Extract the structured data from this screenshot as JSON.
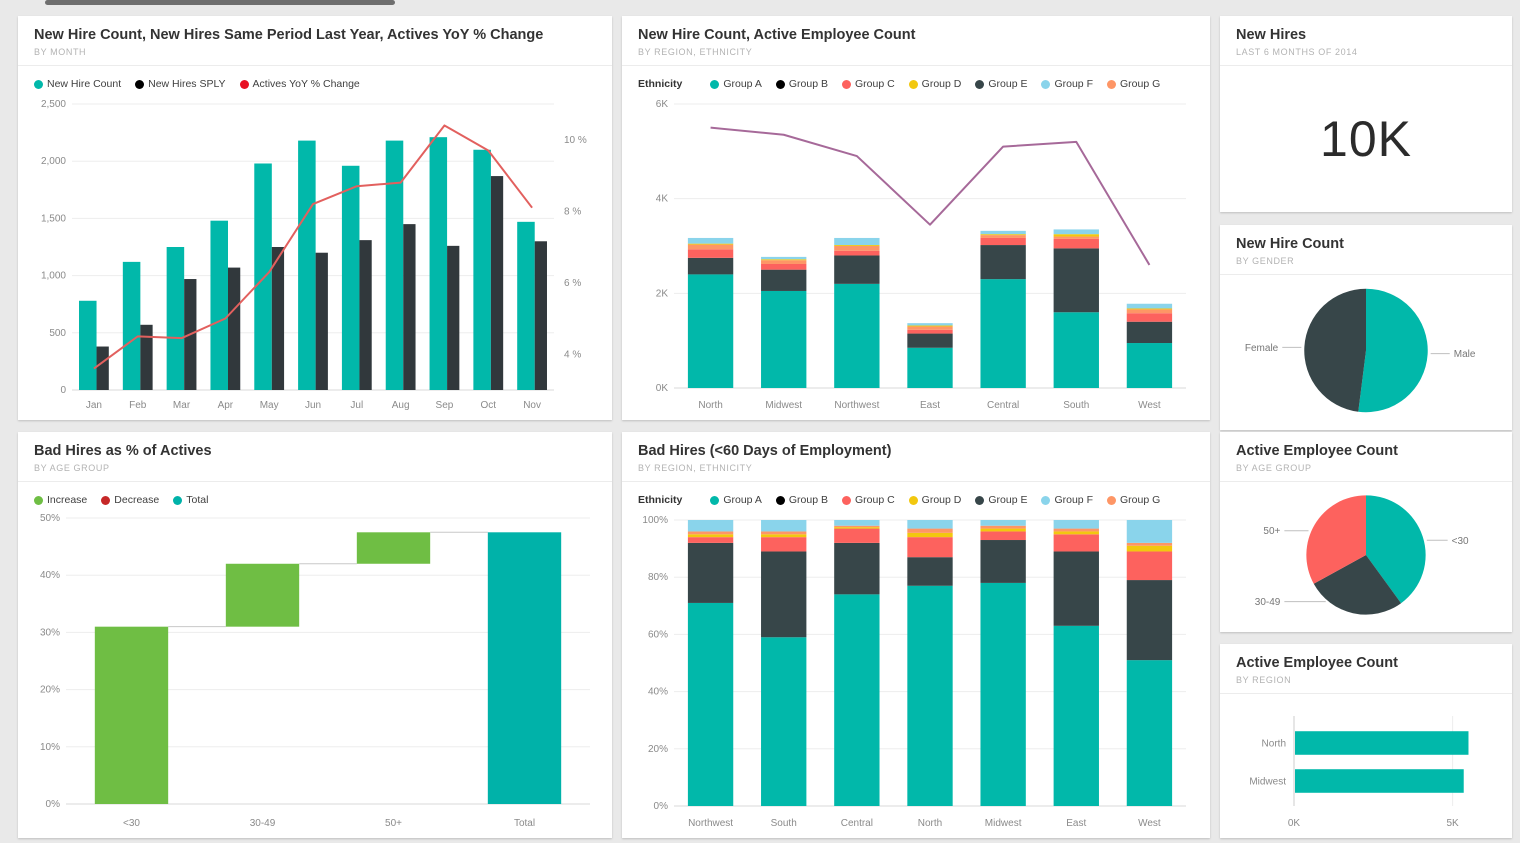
{
  "page": {
    "background": "#e9e9e9"
  },
  "colors": {
    "teal": "#01B8AA",
    "teal_total": "#00B2A9",
    "darkbar": "#31383C",
    "dark": "#374649",
    "black": "#000000",
    "red": "#FD625E",
    "yellow": "#F2C80F",
    "skyblue": "#8AD4EB",
    "orange": "#FE9666",
    "purple": "#A66999",
    "green": "#6FBE44",
    "legend_red": "#E81123",
    "line_red": "#E2605E",
    "decrease_red": "#C62828",
    "coral": "#FD625E",
    "axis_text": "#8a8a8a",
    "grid": "#ededed",
    "axis_line": "#d9d9d9"
  },
  "chart_data": [
    {
      "type": "combo",
      "title": "New Hire Count, New Hires Same Period Last Year, Actives YoY % Change",
      "subtitle": "BY MONTH",
      "legend": [
        {
          "label": "New Hire Count",
          "color": "teal"
        },
        {
          "label": "New Hires SPLY",
          "color": "black"
        },
        {
          "label": "Actives YoY % Change",
          "color": "legend_red"
        }
      ],
      "categories": [
        "Jan",
        "Feb",
        "Mar",
        "Apr",
        "May",
        "Jun",
        "Jul",
        "Aug",
        "Sep",
        "Oct",
        "Nov"
      ],
      "series": [
        {
          "name": "New Hire Count",
          "kind": "bar",
          "color": "teal",
          "values": [
            780,
            1120,
            1250,
            1480,
            1980,
            2180,
            1960,
            2180,
            2210,
            2100,
            1470
          ]
        },
        {
          "name": "New Hires SPLY",
          "kind": "bar",
          "color": "darkbar",
          "values": [
            380,
            570,
            970,
            1070,
            1250,
            1200,
            1310,
            1450,
            1260,
            1870,
            1300
          ]
        },
        {
          "name": "Actives YoY % Change",
          "kind": "line",
          "color": "line_red",
          "axis": "right",
          "values": [
            3.6,
            4.5,
            4.45,
            5.0,
            6.3,
            8.2,
            8.7,
            8.8,
            10.4,
            9.7,
            8.1
          ]
        }
      ],
      "y_left": {
        "min": 0,
        "max": 2500,
        "step": 500
      },
      "y_right": {
        "min": 3,
        "max": 11,
        "ticks": [
          4,
          6,
          8,
          10
        ],
        "suffix": " %"
      }
    },
    {
      "type": "stackedline",
      "title": "New Hire Count, Active Employee Count",
      "subtitle": "BY REGION, ETHNICITY",
      "legend_label": "Ethnicity",
      "legend": [
        {
          "label": "Group A",
          "color": "teal"
        },
        {
          "label": "Group B",
          "color": "black"
        },
        {
          "label": "Group C",
          "color": "red"
        },
        {
          "label": "Group D",
          "color": "yellow"
        },
        {
          "label": "Group E",
          "color": "dark"
        },
        {
          "label": "Group F",
          "color": "skyblue"
        },
        {
          "label": "Group G",
          "color": "orange"
        }
      ],
      "categories": [
        "North",
        "Midwest",
        "Northwest",
        "East",
        "Central",
        "South",
        "West"
      ],
      "stacks": [
        {
          "name": "Group A",
          "color": "teal",
          "values": [
            2.4,
            2.05,
            2.2,
            0.85,
            2.3,
            1.6,
            0.95
          ]
        },
        {
          "name": "Group B",
          "color": "dark",
          "values": [
            0.35,
            0.45,
            0.6,
            0.3,
            0.72,
            1.35,
            0.45
          ]
        },
        {
          "name": "Group C",
          "color": "red",
          "values": [
            0.18,
            0.12,
            0.1,
            0.08,
            0.15,
            0.2,
            0.18
          ]
        },
        {
          "name": "Group G",
          "color": "orange",
          "values": [
            0.1,
            0.08,
            0.1,
            0.07,
            0.06,
            0.05,
            0.08
          ]
        },
        {
          "name": "Group D",
          "color": "yellow",
          "values": [
            0.02,
            0.02,
            0.02,
            0.02,
            0.02,
            0.05,
            0.02
          ]
        },
        {
          "name": "Group F",
          "color": "skyblue",
          "values": [
            0.12,
            0.05,
            0.15,
            0.05,
            0.07,
            0.1,
            0.1
          ]
        }
      ],
      "line": {
        "name": "Active Employee Count",
        "color": "purple",
        "values": [
          5.5,
          5.35,
          4.9,
          3.45,
          5.1,
          5.2,
          2.6
        ]
      },
      "y": {
        "min": 0,
        "max": 6,
        "ticks": [
          0,
          2,
          4,
          6
        ],
        "suffix": "K"
      }
    },
    {
      "type": "card",
      "title": "New Hires",
      "subtitle": "LAST 6 MONTHS OF 2014",
      "value": "10K"
    },
    {
      "type": "pie",
      "title": "New Hire Count",
      "subtitle": "BY GENDER",
      "slices": [
        {
          "label": "Male",
          "value": 52,
          "color": "teal"
        },
        {
          "label": "Female",
          "value": 48,
          "color": "dark"
        }
      ]
    },
    {
      "type": "waterfall",
      "title": "Bad Hires as % of Actives",
      "subtitle": "BY AGE GROUP",
      "legend": [
        {
          "label": "Increase",
          "color": "green"
        },
        {
          "label": "Decrease",
          "color": "decrease_red"
        },
        {
          "label": "Total",
          "color": "teal_total"
        }
      ],
      "steps": [
        {
          "label": "<30",
          "start": 0,
          "end": 31,
          "color": "green"
        },
        {
          "label": "30-49",
          "start": 31,
          "end": 42,
          "color": "green"
        },
        {
          "label": "50+",
          "start": 42,
          "end": 47.5,
          "color": "green"
        },
        {
          "label": "Total",
          "start": 0,
          "end": 47.5,
          "color": "teal_total"
        }
      ],
      "y": {
        "min": 0,
        "max": 50,
        "step": 10,
        "suffix": "%"
      }
    },
    {
      "type": "stacked100",
      "title": "Bad Hires (<60 Days of Employment)",
      "subtitle": "BY REGION, ETHNICITY",
      "legend_label": "Ethnicity",
      "legend": [
        {
          "label": "Group A",
          "color": "teal"
        },
        {
          "label": "Group B",
          "color": "black"
        },
        {
          "label": "Group C",
          "color": "red"
        },
        {
          "label": "Group D",
          "color": "yellow"
        },
        {
          "label": "Group E",
          "color": "dark"
        },
        {
          "label": "Group F",
          "color": "skyblue"
        },
        {
          "label": "Group G",
          "color": "orange"
        }
      ],
      "categories": [
        "Northwest",
        "South",
        "Central",
        "North",
        "Midwest",
        "East",
        "West"
      ],
      "stacks": [
        {
          "name": "Group A",
          "color": "teal",
          "values": [
            71,
            59,
            74,
            77,
            78,
            63,
            51
          ]
        },
        {
          "name": "Group B",
          "color": "dark",
          "values": [
            21,
            30,
            18,
            10,
            15,
            26,
            28
          ]
        },
        {
          "name": "Group C",
          "color": "red",
          "values": [
            2,
            5,
            5,
            7,
            3,
            6,
            10
          ]
        },
        {
          "name": "Group D",
          "color": "yellow",
          "values": [
            1,
            1,
            0.5,
            1.5,
            1,
            1,
            2
          ]
        },
        {
          "name": "Group G",
          "color": "orange",
          "values": [
            1,
            1,
            0.5,
            1.5,
            1,
            1,
            1
          ]
        },
        {
          "name": "Group F",
          "color": "skyblue",
          "values": [
            4,
            4,
            2,
            3,
            2,
            3,
            8
          ]
        }
      ],
      "y": {
        "min": 0,
        "max": 100,
        "step": 20,
        "suffix": "%"
      }
    },
    {
      "type": "pie",
      "title": "Active Employee Count",
      "subtitle": "BY AGE GROUP",
      "slices": [
        {
          "label": "<30",
          "value": 40,
          "color": "teal"
        },
        {
          "label": "30-49",
          "value": 27,
          "color": "dark"
        },
        {
          "label": "50+",
          "value": 33,
          "color": "coral"
        }
      ]
    },
    {
      "type": "hbar",
      "title": "Active Employee Count",
      "subtitle": "BY REGION",
      "categories": [
        "North",
        "Midwest"
      ],
      "values": [
        5.5,
        5.35
      ],
      "x": {
        "min": 0,
        "max": 5.8,
        "ticks": [
          0,
          5
        ],
        "suffix": "K"
      }
    }
  ]
}
